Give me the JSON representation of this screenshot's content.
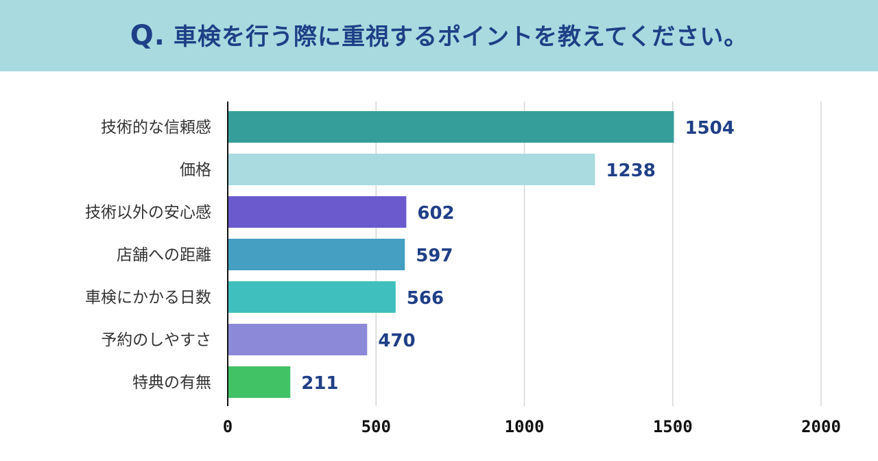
{
  "header": {
    "q_prefix": "Q.",
    "question": "車検を行う際に重視するポイントを教えてください。"
  },
  "colors": {
    "header_bg": "#a8dae0",
    "title_text": "#1f3f86",
    "grid": "#d6d6d6",
    "axis": "#111111"
  },
  "chart_data": {
    "type": "bar",
    "orientation": "horizontal",
    "title": "車検を行う際に重視するポイントを教えてください。",
    "xlabel": "",
    "ylabel": "",
    "xlim": [
      0,
      2000
    ],
    "grid": true,
    "legend": "none",
    "ticks": [
      "0",
      "500",
      "1000",
      "1500",
      "2000"
    ],
    "tick_values": [
      0,
      500,
      1000,
      1500,
      2000
    ],
    "categories": [
      "技術的な信頼感",
      "価格",
      "技術以外の安心感",
      "店舗への距離",
      "車検にかかる日数",
      "予約のしやすさ",
      "特典の有無"
    ],
    "values": [
      1504,
      1238,
      602,
      597,
      566,
      470,
      211
    ],
    "bar_colors": [
      "#359e9b",
      "#a9dbe1",
      "#6a5acd",
      "#449fc2",
      "#3fc0bf",
      "#8c8ad8",
      "#41c265"
    ]
  }
}
